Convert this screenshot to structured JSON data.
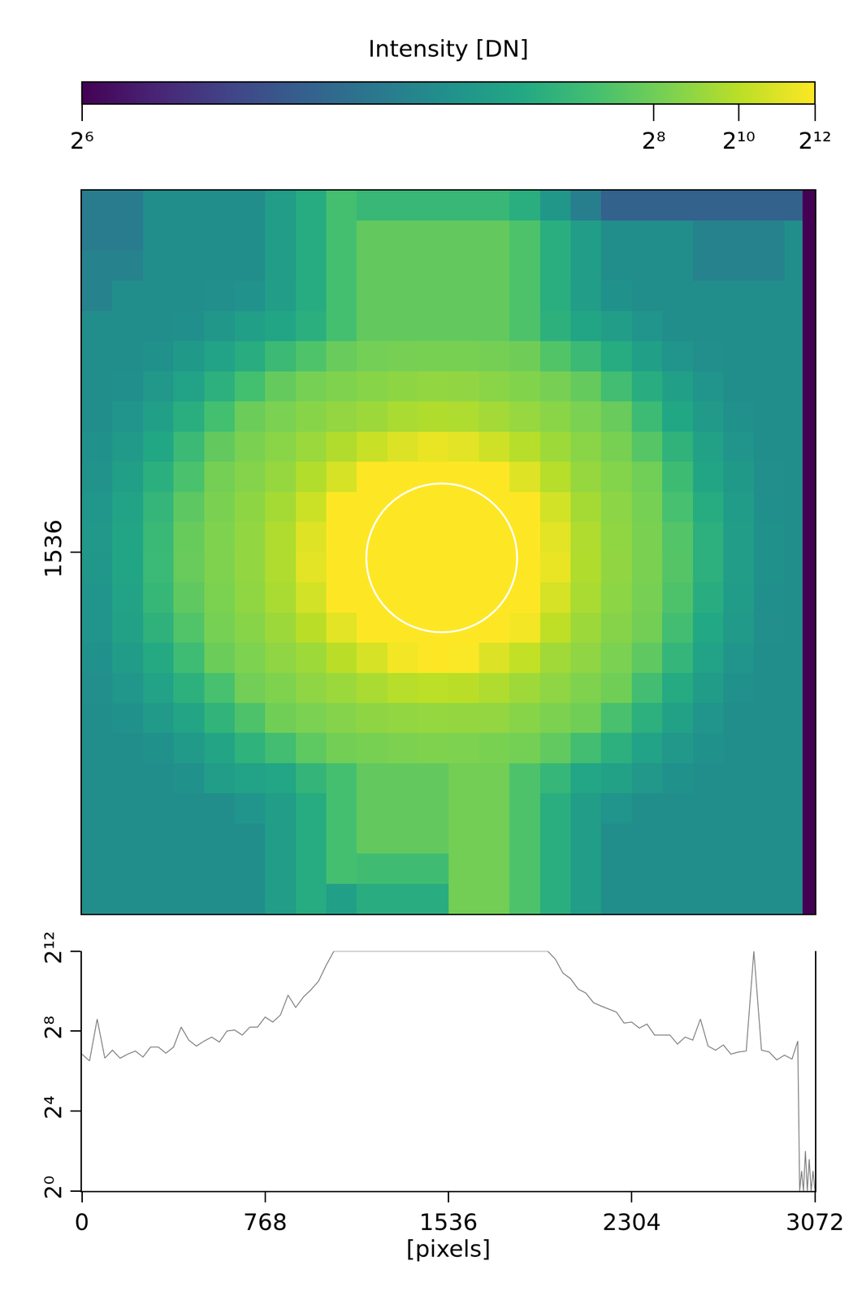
{
  "chart_data": [
    {
      "type": "heatmap",
      "xlim": [
        0,
        3072
      ],
      "ylim": [
        0,
        3072
      ],
      "yticks": [
        1536
      ],
      "tick_labels": "y",
      "x_edges": [
        0,
        128,
        256,
        384,
        512,
        640,
        768,
        896,
        1024,
        1152,
        1280,
        1408,
        1536,
        1664,
        1792,
        1920,
        2048,
        2176,
        2304,
        2432,
        2560,
        2688,
        2816,
        2944,
        3020,
        3072
      ],
      "cells": [
        [
          94,
          94,
          111,
          111,
          111,
          111,
          128,
          155,
          201,
          181,
          181,
          181,
          181,
          181,
          160,
          121,
          97,
          84,
          84,
          84,
          84,
          84,
          84,
          84,
          1
        ],
        [
          94,
          94,
          111,
          111,
          111,
          111,
          128,
          155,
          201,
          239,
          239,
          239,
          239,
          239,
          211,
          160,
          128,
          111,
          111,
          111,
          100,
          100,
          100,
          111,
          1
        ],
        [
          100,
          100,
          111,
          111,
          111,
          111,
          128,
          155,
          201,
          239,
          239,
          239,
          239,
          239,
          211,
          160,
          128,
          111,
          111,
          111,
          100,
          100,
          100,
          111,
          1
        ],
        [
          100,
          111,
          111,
          111,
          112,
          115,
          130,
          155,
          201,
          239,
          239,
          239,
          239,
          239,
          211,
          160,
          130,
          114,
          111,
          111,
          111,
          111,
          111,
          111,
          1
        ],
        [
          111,
          111,
          111,
          113,
          121,
          132,
          143,
          163,
          201,
          239,
          239,
          239,
          239,
          239,
          211,
          165,
          143,
          130,
          118,
          111,
          111,
          111,
          111,
          111,
          1
        ],
        [
          111,
          111,
          114,
          124,
          137,
          158,
          186,
          214,
          247,
          278,
          302,
          313,
          311,
          290,
          256,
          217,
          186,
          155,
          134,
          119,
          112,
          111,
          111,
          111,
          1
        ],
        [
          111,
          113,
          122,
          138,
          164,
          200,
          242,
          298,
          358,
          411,
          468,
          498,
          488,
          428,
          373,
          306,
          242,
          197,
          158,
          132,
          117,
          111,
          111,
          111,
          1
        ],
        [
          111,
          119,
          134,
          160,
          200,
          252,
          329,
          416,
          508,
          608,
          769,
          853,
          819,
          675,
          541,
          431,
          329,
          246,
          189,
          147,
          125,
          114,
          111,
          111,
          1
        ],
        [
          114,
          125,
          146,
          186,
          239,
          324,
          431,
          588,
          865,
          1351,
          2048,
          2702,
          2352,
          1552,
          955,
          617,
          431,
          311,
          222,
          170,
          135,
          117,
          111,
          111,
          1
        ],
        [
          116,
          133,
          163,
          208,
          286,
          397,
          533,
          891,
          1783,
          4095,
          4095,
          4095,
          4095,
          4095,
          2195,
          955,
          533,
          381,
          265,
          191,
          144,
          123,
          112,
          111,
          1
        ],
        [
          120,
          140,
          176,
          231,
          326,
          465,
          703,
          1448,
          4095,
          4095,
          4095,
          4095,
          4095,
          4095,
          4095,
          1663,
          703,
          446,
          300,
          204,
          155,
          127,
          113,
          111,
          1
        ],
        [
          122,
          143,
          183,
          244,
          350,
          495,
          830,
          2195,
          4095,
          4095,
          4095,
          4095,
          4095,
          4095,
          4095,
          2352,
          830,
          485,
          322,
          219,
          164,
          128,
          114,
          111,
          1
        ],
        [
          121,
          144,
          185,
          246,
          353,
          498,
          841,
          2352,
          4095,
          4095,
          4095,
          4095,
          4095,
          4095,
          4095,
          2702,
          859,
          488,
          324,
          220,
          164,
          128,
          114,
          111,
          1
        ],
        [
          119,
          140,
          180,
          235,
          333,
          478,
          753,
          1663,
          4095,
          4095,
          4095,
          4095,
          4095,
          4095,
          4095,
          1783,
          753,
          452,
          306,
          213,
          158,
          127,
          113,
          111,
          1
        ],
        [
          117,
          135,
          168,
          216,
          298,
          416,
          604,
          1024,
          2352,
          4095,
          4095,
          4095,
          4095,
          4095,
          3327,
          1136,
          604,
          400,
          274,
          197,
          148,
          125,
          112,
          111,
          1
        ],
        [
          114,
          127,
          151,
          193,
          252,
          343,
          471,
          617,
          1024,
          1783,
          3327,
          4095,
          3822,
          2048,
          1176,
          656,
          471,
          329,
          234,
          176,
          138,
          119,
          111,
          111,
          1
        ],
        [
          112,
          120,
          137,
          166,
          204,
          270,
          355,
          471,
          583,
          748,
          955,
          1060,
          1017,
          830,
          625,
          471,
          355,
          261,
          197,
          153,
          127,
          114,
          111,
          111,
          1
        ],
        [
          111,
          114,
          125,
          142,
          172,
          211,
          263,
          329,
          394,
          475,
          498,
          530,
          519,
          505,
          411,
          336,
          263,
          206,
          164,
          135,
          119,
          111,
          111,
          111,
          1
        ],
        [
          111,
          111,
          114,
          125,
          142,
          169,
          197,
          232,
          274,
          311,
          338,
          350,
          345,
          320,
          282,
          237,
          197,
          164,
          137,
          122,
          114,
          111,
          111,
          111,
          1
        ],
        [
          111,
          111,
          111,
          114,
          128,
          137,
          145,
          175,
          201,
          239,
          239,
          239,
          274,
          274,
          211,
          178,
          145,
          135,
          122,
          114,
          111,
          111,
          111,
          111,
          1
        ],
        [
          111,
          111,
          111,
          111,
          111,
          119,
          128,
          155,
          201,
          239,
          239,
          239,
          274,
          274,
          211,
          160,
          128,
          118,
          111,
          111,
          111,
          111,
          111,
          111,
          1
        ],
        [
          111,
          111,
          111,
          111,
          111,
          111,
          128,
          155,
          201,
          239,
          239,
          239,
          274,
          274,
          211,
          160,
          128,
          111,
          111,
          111,
          111,
          111,
          111,
          111,
          1
        ],
        [
          111,
          111,
          111,
          111,
          111,
          111,
          128,
          155,
          201,
          194,
          194,
          194,
          274,
          274,
          211,
          160,
          128,
          111,
          111,
          111,
          111,
          111,
          111,
          111,
          1
        ],
        [
          111,
          111,
          111,
          111,
          111,
          111,
          128,
          155,
          133,
          158,
          158,
          158,
          274,
          274,
          211,
          160,
          128,
          111,
          111,
          111,
          111,
          111,
          111,
          111,
          1
        ]
      ],
      "log": true,
      "color": "viridis",
      "color_label": "Intensity [DN]",
      "color_range": [
        64,
        4096
      ],
      "color_ticks": [
        {
          "value": 64,
          "label": "2⁶"
        },
        {
          "value": 256,
          "label": "2⁸"
        },
        {
          "value": 1024,
          "label": "2¹⁰"
        },
        {
          "value": 4096,
          "label": "2¹²"
        }
      ],
      "circle": {
        "x": 1508,
        "y": 1560,
        "r": 316,
        "color": "#ffffff"
      }
    },
    {
      "type": "line",
      "x": [
        0,
        32,
        64,
        96,
        128,
        160,
        192,
        224,
        256,
        288,
        320,
        352,
        384,
        416,
        448,
        480,
        512,
        544,
        576,
        608,
        640,
        672,
        704,
        736,
        768,
        800,
        832,
        864,
        896,
        928,
        960,
        992,
        1024,
        1056,
        1088,
        1120,
        1152,
        1184,
        1216,
        1248,
        1280,
        1312,
        1344,
        1376,
        1408,
        1440,
        1472,
        1504,
        1536,
        1568,
        1600,
        1632,
        1664,
        1696,
        1728,
        1760,
        1792,
        1824,
        1856,
        1888,
        1920,
        1952,
        1984,
        2016,
        2048,
        2080,
        2112,
        2144,
        2176,
        2208,
        2240,
        2272,
        2304,
        2336,
        2368,
        2400,
        2432,
        2464,
        2496,
        2528,
        2560,
        2592,
        2624,
        2656,
        2688,
        2720,
        2752,
        2784,
        2816,
        2848,
        2880,
        2912,
        2944,
        2976,
        3000,
        3008,
        3016,
        3024,
        3032,
        3040,
        3048,
        3056,
        3064,
        3072
      ],
      "values": [
        115,
        91,
        388,
        100,
        132,
        100,
        115,
        128,
        104,
        147,
        147,
        119,
        147,
        294,
        187,
        152,
        181,
        208,
        175,
        256,
        265,
        223,
        294,
        294,
        416,
        350,
        446,
        891,
        580,
        832,
        1075,
        1448,
        2521,
        4095,
        4095,
        4095,
        4095,
        4095,
        4095,
        4095,
        4095,
        4095,
        4095,
        4095,
        4095,
        4095,
        4095,
        4095,
        4095,
        4095,
        4095,
        4095,
        4095,
        4095,
        4095,
        4095,
        4095,
        4095,
        4095,
        4095,
        4095,
        4095,
        3104,
        1911,
        1574,
        1097,
        955,
        685,
        609,
        549,
        495,
        338,
        350,
        284,
        326,
        223,
        223,
        223,
        163,
        208,
        187,
        388,
        152,
        132,
        158,
        115,
        124,
        128,
        4095,
        132,
        124,
        94,
        111,
        97,
        181,
        1,
        2,
        1,
        4,
        1,
        3,
        1,
        2,
        1
      ],
      "color": "#808080",
      "xlim": [
        0,
        3072
      ],
      "xticks": [
        0,
        768,
        1536,
        2304,
        3072
      ],
      "ylim": [
        1,
        4096
      ],
      "yticks": [
        {
          "value": 1,
          "label": "2⁰"
        },
        {
          "value": 16,
          "label": "2⁴"
        },
        {
          "value": 256,
          "label": "2⁸"
        },
        {
          "value": 4096,
          "label": "2¹²"
        }
      ],
      "log": "y",
      "x_label": "[pixels]"
    }
  ]
}
